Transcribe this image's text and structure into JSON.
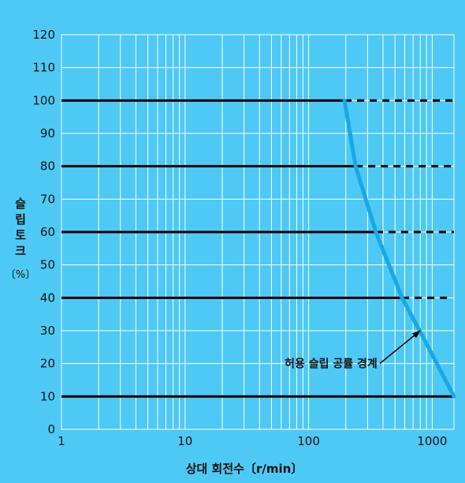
{
  "colors": {
    "background": "#4ec9f5",
    "grid": "#ffffff",
    "torque_line": "#000000",
    "boundary_curve": "#18a8e8"
  },
  "chart_data": {
    "type": "line",
    "title": "",
    "xlabel": "상대 회전수〔r/min〕",
    "ylabel_chars": [
      "슬",
      "립",
      "토",
      "크"
    ],
    "ylabel_unit": "〔%〕",
    "x_scale": "log",
    "xlim": [
      1,
      1500
    ],
    "ylim": [
      0,
      120
    ],
    "x_ticks": [
      {
        "value": 1,
        "label": "1"
      },
      {
        "value": 10,
        "label": "10"
      },
      {
        "value": 100,
        "label": "100"
      },
      {
        "value": 1000,
        "label": "1000"
      }
    ],
    "y_ticks": [
      0,
      10,
      20,
      30,
      40,
      50,
      60,
      70,
      80,
      90,
      100,
      110,
      120
    ],
    "grid": true,
    "torque_levels": [
      {
        "y": 100,
        "solid_to_x": 195,
        "dashed_to_x": 1500
      },
      {
        "y": 80,
        "solid_to_x": 240,
        "dashed_to_x": 1450
      },
      {
        "y": 60,
        "solid_to_x": 350,
        "dashed_to_x": 1500
      },
      {
        "y": 40,
        "solid_to_x": 570,
        "dashed_to_x": 1400
      },
      {
        "y": 10,
        "solid_to_x": 1500,
        "dashed_to_x": 1500
      }
    ],
    "series": [
      {
        "x": [
          195,
          240,
          350,
          570,
          900,
          1500
        ],
        "y": [
          100,
          80,
          60,
          40,
          26,
          10
        ]
      }
    ],
    "annotations": [
      {
        "text": "허용 슬립 공률 경계",
        "x": 360,
        "y": 20,
        "arrow_to_x": 800,
        "arrow_to_y": 30
      }
    ]
  }
}
